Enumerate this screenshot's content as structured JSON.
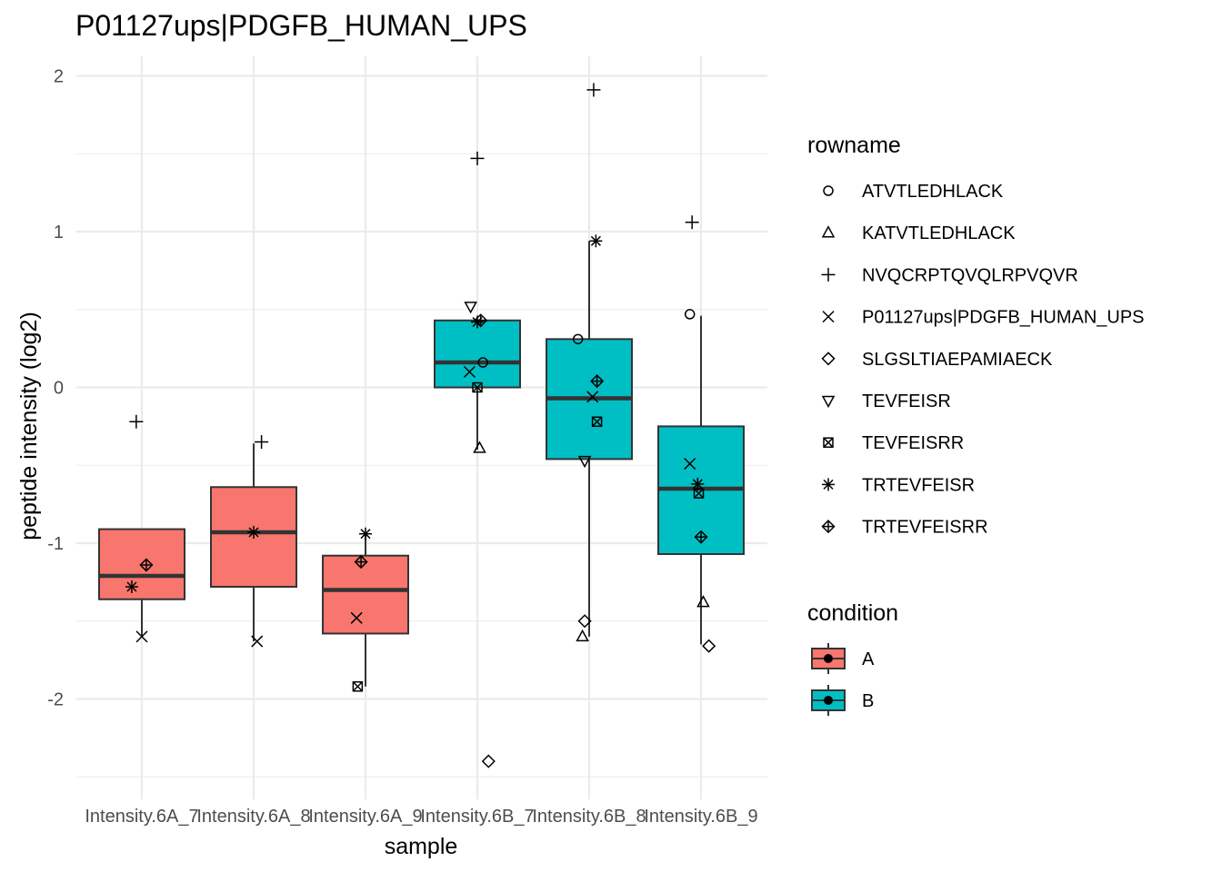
{
  "chart_data": {
    "type": "box",
    "title": "P01127ups|PDGFB_HUMAN_UPS",
    "xlabel": "sample",
    "ylabel": "peptide intensity (log2)",
    "categories": [
      "Intensity.6A_7",
      "Intensity.6A_8",
      "Intensity.6A_9",
      "Intensity.6B_7",
      "Intensity.6B_8",
      "Intensity.6B_9"
    ],
    "ylim": [
      -2.5,
      2.1
    ],
    "yticks": [
      -2,
      -1,
      0,
      1,
      2
    ],
    "grid": true,
    "legend_position": "right",
    "condition_legend": {
      "title": "condition",
      "entries": [
        {
          "name": "A",
          "color": "#F8766D"
        },
        {
          "name": "B",
          "color": "#00BFC4"
        }
      ]
    },
    "shape_legend": {
      "title": "rowname",
      "entries": [
        {
          "name": "ATVTLEDHLACK",
          "shape": "circle"
        },
        {
          "name": "KATVTLEDHLACK",
          "shape": "triangle"
        },
        {
          "name": "NVQCRPTQVQLRPVQVR",
          "shape": "plus"
        },
        {
          "name": "P01127ups|PDGFB_HUMAN_UPS",
          "shape": "cross"
        },
        {
          "name": "SLGSLTIAEPAMIAECK",
          "shape": "diamond"
        },
        {
          "name": "TEVFEISR",
          "shape": "triangle-down"
        },
        {
          "name": "TEVFEISRR",
          "shape": "square-cross"
        },
        {
          "name": "TRTEVFEISR",
          "shape": "asterisk"
        },
        {
          "name": "TRTEVFEISRR",
          "shape": "diamond-plus"
        }
      ]
    },
    "boxes": [
      {
        "sample": "Intensity.6A_7",
        "condition": "A",
        "q1": -1.36,
        "median": -1.21,
        "q3": -0.91,
        "whisker_low": -1.6,
        "whisker_high": -0.91
      },
      {
        "sample": "Intensity.6A_8",
        "condition": "A",
        "q1": -1.28,
        "median": -0.93,
        "q3": -0.64,
        "whisker_low": -1.63,
        "whisker_high": -0.36
      },
      {
        "sample": "Intensity.6A_9",
        "condition": "A",
        "q1": -1.58,
        "median": -1.3,
        "q3": -1.08,
        "whisker_low": -1.92,
        "whisker_high": -0.94
      },
      {
        "sample": "Intensity.6B_7",
        "condition": "B",
        "q1": 0.0,
        "median": 0.16,
        "q3": 0.43,
        "whisker_low": -0.4,
        "whisker_high": 0.43
      },
      {
        "sample": "Intensity.6B_8",
        "condition": "B",
        "q1": -0.46,
        "median": -0.07,
        "q3": 0.31,
        "whisker_low": -1.6,
        "whisker_high": 0.94
      },
      {
        "sample": "Intensity.6B_9",
        "condition": "B",
        "q1": -1.07,
        "median": -0.65,
        "q3": -0.25,
        "whisker_low": -1.65,
        "whisker_high": 0.46
      }
    ],
    "points": [
      {
        "sample_index": 0,
        "x_offset": 0.0,
        "y": -1.6,
        "peptide": "P01127ups|PDGFB_HUMAN_UPS"
      },
      {
        "sample_index": 0,
        "x_offset": -0.05,
        "y": -0.22,
        "peptide": "NVQCRPTQVQLRPVQVR"
      },
      {
        "sample_index": 0,
        "x_offset": -0.09,
        "y": -1.28,
        "peptide": "TRTEVFEISR"
      },
      {
        "sample_index": 0,
        "x_offset": 0.04,
        "y": -1.14,
        "peptide": "TRTEVFEISRR"
      },
      {
        "sample_index": 1,
        "x_offset": 0.07,
        "y": -0.35,
        "peptide": "NVQCRPTQVQLRPVQVR"
      },
      {
        "sample_index": 1,
        "x_offset": 0.0,
        "y": -0.93,
        "peptide": "TRTEVFEISR"
      },
      {
        "sample_index": 1,
        "x_offset": 0.03,
        "y": -1.63,
        "peptide": "P01127ups|PDGFB_HUMAN_UPS"
      },
      {
        "sample_index": 2,
        "x_offset": 0.0,
        "y": -0.94,
        "peptide": "TRTEVFEISR"
      },
      {
        "sample_index": 2,
        "x_offset": -0.04,
        "y": -1.12,
        "peptide": "TRTEVFEISRR"
      },
      {
        "sample_index": 2,
        "x_offset": -0.08,
        "y": -1.48,
        "peptide": "P01127ups|PDGFB_HUMAN_UPS"
      },
      {
        "sample_index": 2,
        "x_offset": -0.07,
        "y": -1.92,
        "peptide": "TEVFEISRR"
      },
      {
        "sample_index": 3,
        "x_offset": 0.0,
        "y": 1.47,
        "peptide": "NVQCRPTQVQLRPVQVR"
      },
      {
        "sample_index": 3,
        "x_offset": -0.06,
        "y": 0.52,
        "peptide": "TEVFEISR"
      },
      {
        "sample_index": 3,
        "x_offset": 0.03,
        "y": 0.43,
        "peptide": "TRTEVFEISRR"
      },
      {
        "sample_index": 3,
        "x_offset": 0.0,
        "y": 0.42,
        "peptide": "TRTEVFEISR"
      },
      {
        "sample_index": 3,
        "x_offset": 0.05,
        "y": 0.16,
        "peptide": "ATVTLEDHLACK"
      },
      {
        "sample_index": 3,
        "x_offset": -0.07,
        "y": 0.1,
        "peptide": "P01127ups|PDGFB_HUMAN_UPS"
      },
      {
        "sample_index": 3,
        "x_offset": 0.0,
        "y": 0.0,
        "peptide": "TEVFEISRR"
      },
      {
        "sample_index": 3,
        "x_offset": 0.02,
        "y": -0.39,
        "peptide": "KATVTLEDHLACK"
      },
      {
        "sample_index": 3,
        "x_offset": 0.1,
        "y": -2.4,
        "peptide": "SLGSLTIAEPAMIAECK"
      },
      {
        "sample_index": 4,
        "x_offset": 0.04,
        "y": 1.91,
        "peptide": "NVQCRPTQVQLRPVQVR"
      },
      {
        "sample_index": 4,
        "x_offset": 0.06,
        "y": 0.94,
        "peptide": "TRTEVFEISR"
      },
      {
        "sample_index": 4,
        "x_offset": -0.1,
        "y": 0.31,
        "peptide": "ATVTLEDHLACK"
      },
      {
        "sample_index": 4,
        "x_offset": 0.07,
        "y": 0.04,
        "peptide": "TRTEVFEISRR"
      },
      {
        "sample_index": 4,
        "x_offset": 0.03,
        "y": -0.06,
        "peptide": "P01127ups|PDGFB_HUMAN_UPS"
      },
      {
        "sample_index": 4,
        "x_offset": 0.07,
        "y": -0.22,
        "peptide": "TEVFEISRR"
      },
      {
        "sample_index": 4,
        "x_offset": -0.04,
        "y": -0.47,
        "peptide": "TEVFEISR"
      },
      {
        "sample_index": 4,
        "x_offset": -0.04,
        "y": -1.5,
        "peptide": "SLGSLTIAEPAMIAECK"
      },
      {
        "sample_index": 4,
        "x_offset": -0.06,
        "y": -1.6,
        "peptide": "KATVTLEDHLACK"
      },
      {
        "sample_index": 5,
        "x_offset": -0.08,
        "y": 1.06,
        "peptide": "NVQCRPTQVQLRPVQVR"
      },
      {
        "sample_index": 5,
        "x_offset": -0.1,
        "y": 0.47,
        "peptide": "ATVTLEDHLACK"
      },
      {
        "sample_index": 5,
        "x_offset": -0.1,
        "y": -0.49,
        "peptide": "P01127ups|PDGFB_HUMAN_UPS"
      },
      {
        "sample_index": 5,
        "x_offset": -0.03,
        "y": -0.62,
        "peptide": "TRTEVFEISR"
      },
      {
        "sample_index": 5,
        "x_offset": -0.02,
        "y": -0.68,
        "peptide": "TEVFEISRR"
      },
      {
        "sample_index": 5,
        "x_offset": 0.0,
        "y": -0.96,
        "peptide": "TRTEVFEISRR"
      },
      {
        "sample_index": 5,
        "x_offset": 0.02,
        "y": -1.38,
        "peptide": "KATVTLEDHLACK"
      },
      {
        "sample_index": 5,
        "x_offset": 0.07,
        "y": -1.66,
        "peptide": "SLGSLTIAEPAMIAECK"
      }
    ]
  }
}
